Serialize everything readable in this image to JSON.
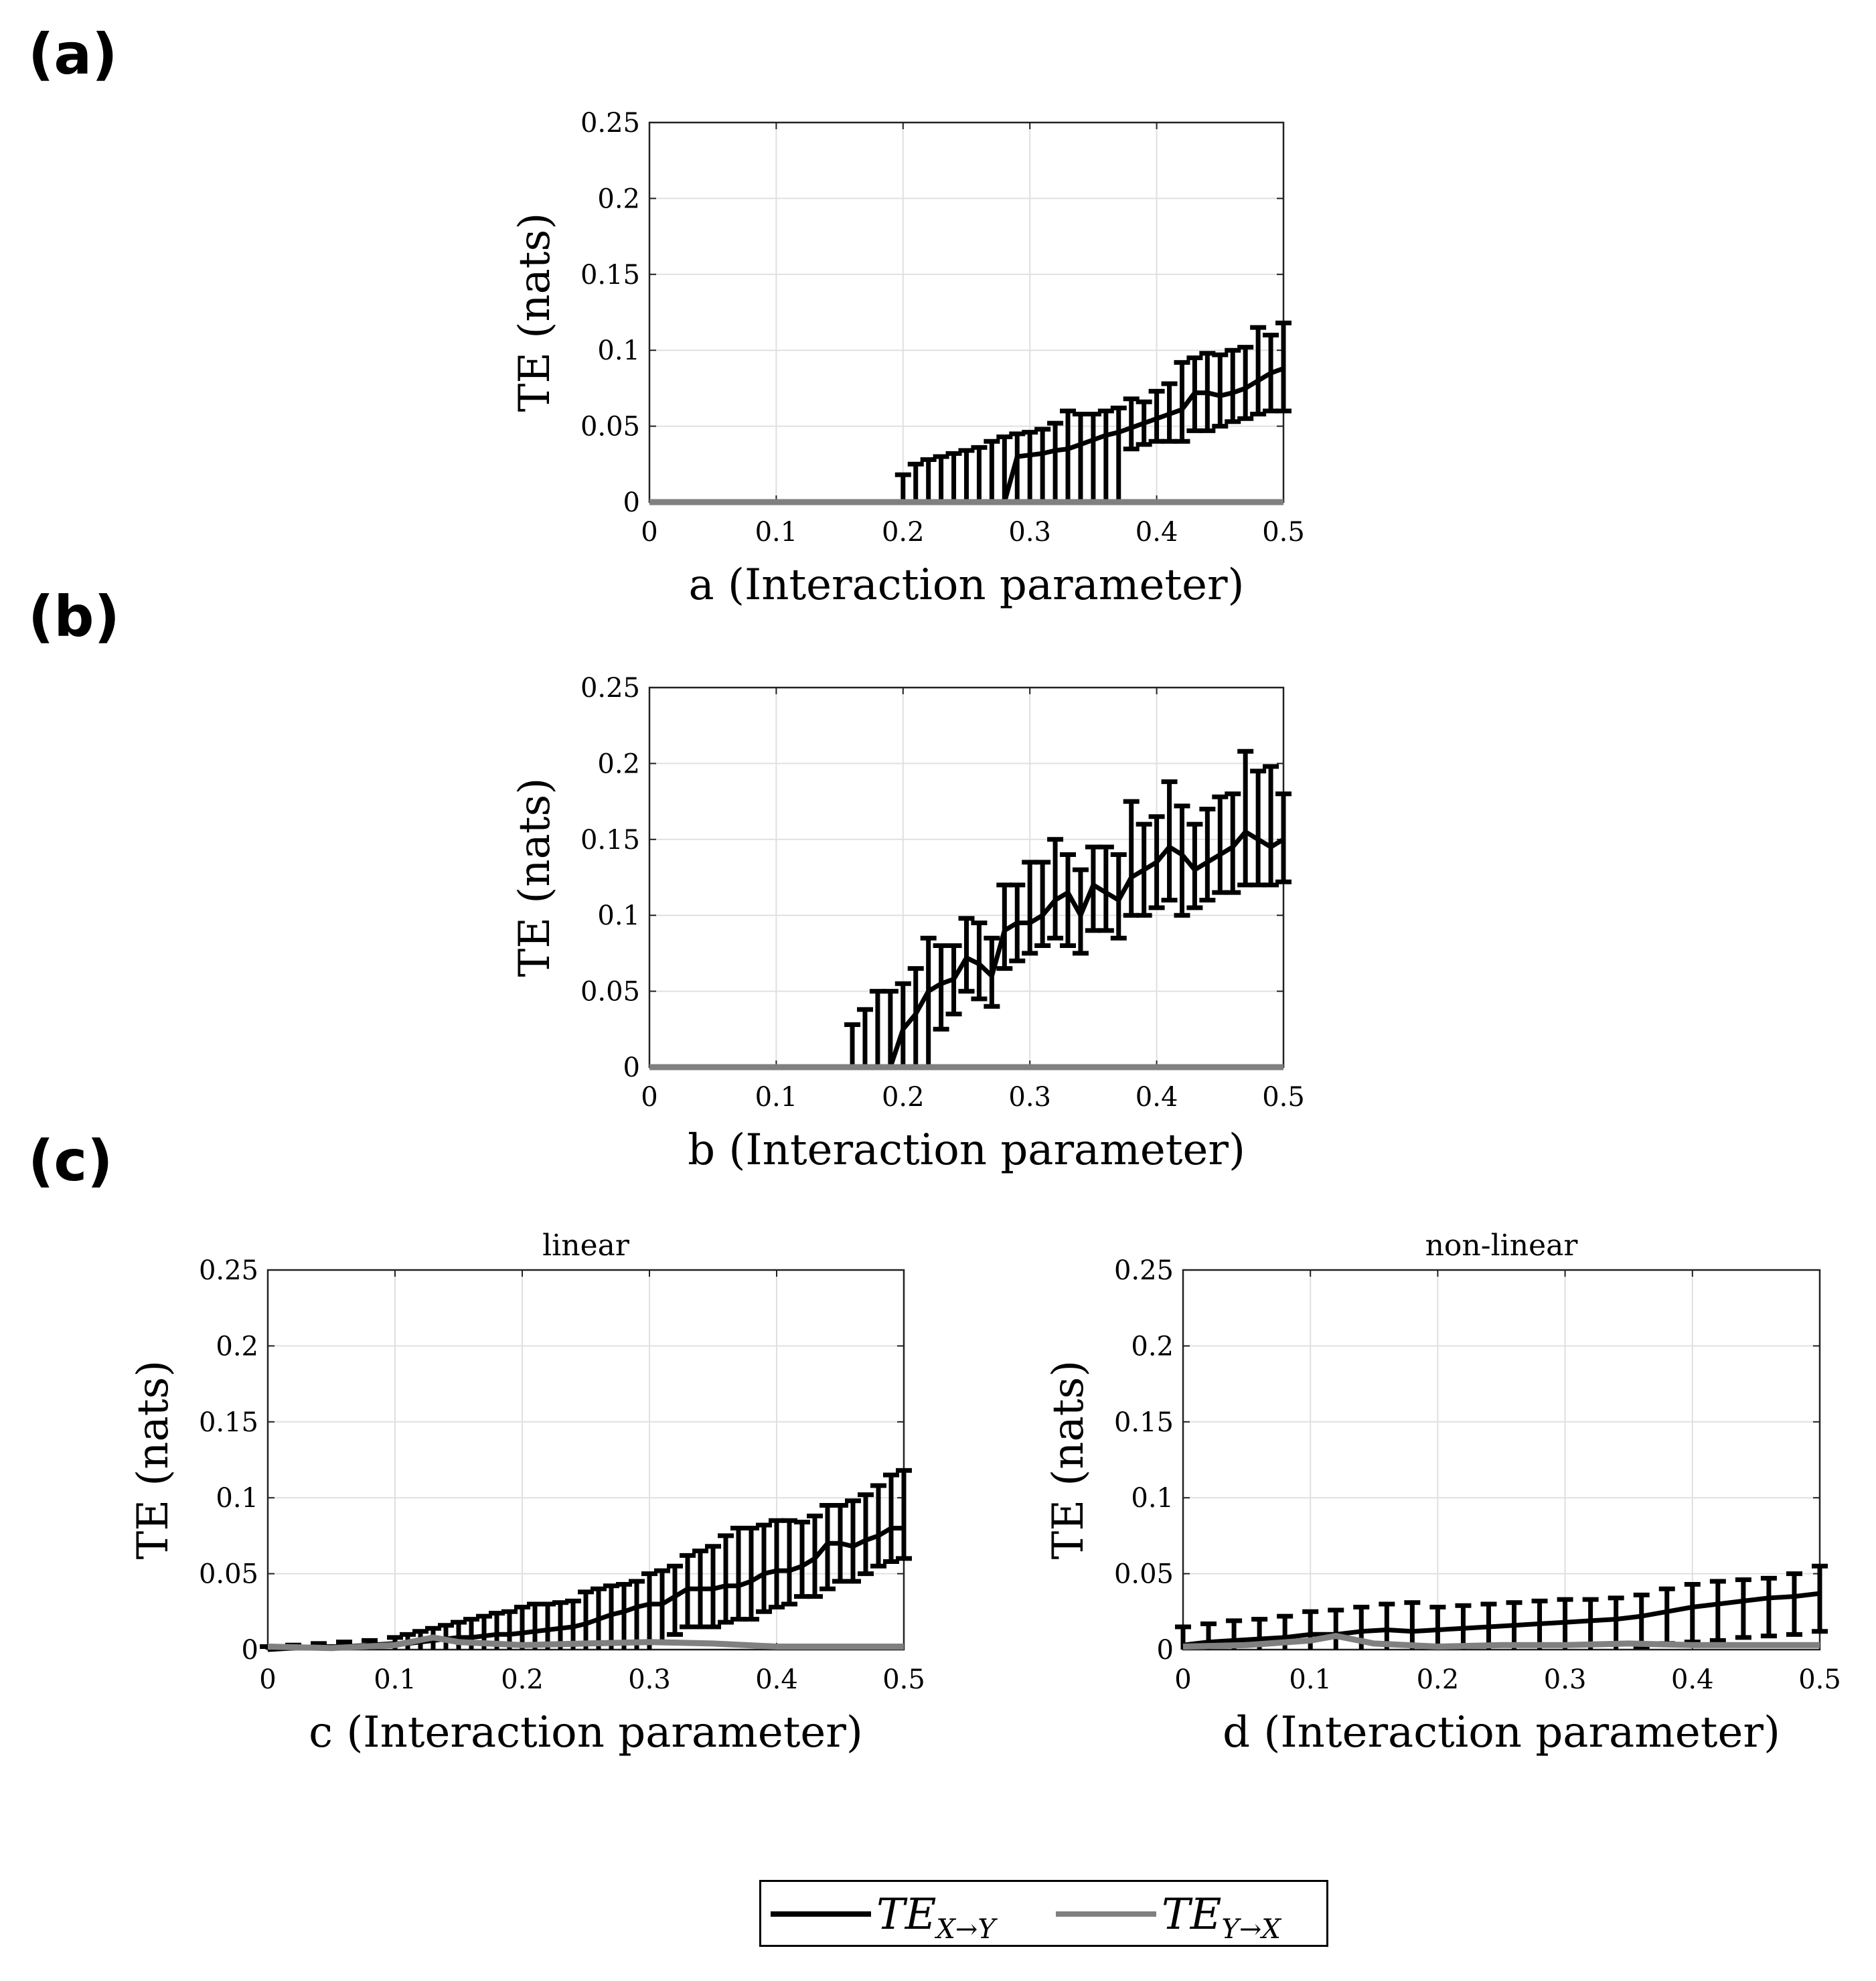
{
  "panel_labels": [
    "(a)",
    "(b)",
    "(c)"
  ],
  "legend": {
    "entries": [
      {
        "main": "TE",
        "sub": "X→Y",
        "color": "#000000"
      },
      {
        "main": "TE",
        "sub": "Y→X",
        "color": "#808080"
      }
    ]
  },
  "chart_data": [
    {
      "type": "line",
      "title": "",
      "xlabel": "a (Interaction parameter)",
      "ylabel": "TE (nats)",
      "xlim": [
        0,
        0.5
      ],
      "ylim": [
        0,
        0.25
      ],
      "xticks": [
        "0",
        "0.1",
        "0.2",
        "0.3",
        "0.4",
        "0.5"
      ],
      "yticks": [
        "0",
        "0.05",
        "0.1",
        "0.15",
        "0.2",
        "0.25"
      ],
      "grid": true,
      "series": [
        {
          "name": "TE X→Y",
          "color": "#000000",
          "x": [
            0.2,
            0.21,
            0.22,
            0.23,
            0.24,
            0.25,
            0.26,
            0.27,
            0.28,
            0.29,
            0.3,
            0.31,
            0.32,
            0.33,
            0.34,
            0.35,
            0.36,
            0.37,
            0.38,
            0.39,
            0.4,
            0.41,
            0.42,
            0.43,
            0.44,
            0.45,
            0.46,
            0.47,
            0.48,
            0.49,
            0.5
          ],
          "y": [
            0,
            0,
            0,
            0,
            0,
            0,
            0,
            0,
            0,
            0.03,
            0.031,
            0.032,
            0.034,
            0.035,
            0.038,
            0.041,
            0.044,
            0.046,
            0.049,
            0.052,
            0.055,
            0.058,
            0.061,
            0.072,
            0.072,
            0.07,
            0.072,
            0.075,
            0.08,
            0.085,
            0.088
          ],
          "err_low": [
            0,
            0,
            0,
            0,
            0,
            0,
            0,
            0,
            0,
            0,
            0,
            0,
            0,
            0,
            0,
            0,
            0,
            0,
            0.035,
            0.038,
            0.04,
            0.04,
            0.04,
            0.047,
            0.047,
            0.05,
            0.053,
            0.055,
            0.058,
            0.06,
            0.06
          ],
          "err_high": [
            0.018,
            0.025,
            0.028,
            0.03,
            0.032,
            0.034,
            0.036,
            0.04,
            0.043,
            0.045,
            0.046,
            0.048,
            0.052,
            0.06,
            0.058,
            0.058,
            0.06,
            0.062,
            0.068,
            0.066,
            0.073,
            0.078,
            0.092,
            0.095,
            0.098,
            0.097,
            0.1,
            0.102,
            0.115,
            0.11,
            0.118
          ]
        },
        {
          "name": "TE Y→X",
          "color": "#808080",
          "x": [
            0,
            0.5
          ],
          "y": [
            0,
            0
          ]
        }
      ]
    },
    {
      "type": "line",
      "title": "",
      "xlabel": "b (Interaction parameter)",
      "ylabel": "TE (nats)",
      "xlim": [
        0,
        0.5
      ],
      "ylim": [
        0,
        0.25
      ],
      "xticks": [
        "0",
        "0.1",
        "0.2",
        "0.3",
        "0.4",
        "0.5"
      ],
      "yticks": [
        "0",
        "0.05",
        "0.1",
        "0.15",
        "0.2",
        "0.25"
      ],
      "grid": true,
      "series": [
        {
          "name": "TE X→Y",
          "color": "#000000",
          "x": [
            0.16,
            0.17,
            0.18,
            0.19,
            0.2,
            0.21,
            0.22,
            0.23,
            0.24,
            0.25,
            0.26,
            0.27,
            0.28,
            0.29,
            0.3,
            0.31,
            0.32,
            0.33,
            0.34,
            0.35,
            0.36,
            0.37,
            0.38,
            0.39,
            0.4,
            0.41,
            0.42,
            0.43,
            0.44,
            0.45,
            0.46,
            0.47,
            0.48,
            0.49,
            0.5
          ],
          "y": [
            0,
            0,
            0,
            0,
            0.025,
            0.035,
            0.05,
            0.055,
            0.058,
            0.072,
            0.068,
            0.06,
            0.09,
            0.095,
            0.095,
            0.1,
            0.11,
            0.115,
            0.1,
            0.12,
            0.115,
            0.11,
            0.125,
            0.13,
            0.135,
            0.145,
            0.14,
            0.13,
            0.135,
            0.14,
            0.145,
            0.155,
            0.15,
            0.145,
            0.15
          ],
          "err_low": [
            0,
            0,
            0,
            0,
            0,
            0,
            0,
            0.025,
            0.035,
            0.05,
            0.045,
            0.04,
            0.065,
            0.07,
            0.075,
            0.08,
            0.085,
            0.08,
            0.075,
            0.09,
            0.09,
            0.085,
            0.1,
            0.1,
            0.105,
            0.11,
            0.1,
            0.105,
            0.11,
            0.115,
            0.115,
            0.12,
            0.12,
            0.12,
            0.122
          ],
          "err_high": [
            0.028,
            0.038,
            0.05,
            0.05,
            0.055,
            0.065,
            0.085,
            0.08,
            0.08,
            0.098,
            0.095,
            0.085,
            0.12,
            0.12,
            0.135,
            0.135,
            0.15,
            0.14,
            0.13,
            0.145,
            0.145,
            0.14,
            0.175,
            0.16,
            0.165,
            0.188,
            0.172,
            0.16,
            0.17,
            0.178,
            0.18,
            0.208,
            0.195,
            0.198,
            0.18
          ]
        },
        {
          "name": "TE Y→X",
          "color": "#808080",
          "x": [
            0,
            0.5
          ],
          "y": [
            0,
            0
          ]
        }
      ]
    },
    {
      "type": "line",
      "title": "linear",
      "xlabel": "c (Interaction parameter)",
      "ylabel": "TE (nats)",
      "xlim": [
        0,
        0.5
      ],
      "ylim": [
        0,
        0.25
      ],
      "xticks": [
        "0",
        "0.1",
        "0.2",
        "0.3",
        "0.4",
        "0.5"
      ],
      "yticks": [
        "0",
        "0.05",
        "0.1",
        "0.15",
        "0.2",
        "0.25"
      ],
      "grid": true,
      "series": [
        {
          "name": "TE X→Y",
          "color": "#000000",
          "x": [
            0.0,
            0.02,
            0.04,
            0.06,
            0.08,
            0.1,
            0.11,
            0.12,
            0.13,
            0.14,
            0.15,
            0.16,
            0.17,
            0.18,
            0.19,
            0.2,
            0.21,
            0.22,
            0.23,
            0.24,
            0.25,
            0.26,
            0.27,
            0.28,
            0.29,
            0.3,
            0.31,
            0.32,
            0.33,
            0.34,
            0.35,
            0.36,
            0.37,
            0.38,
            0.39,
            0.4,
            0.41,
            0.42,
            0.43,
            0.44,
            0.45,
            0.46,
            0.47,
            0.48,
            0.49,
            0.5
          ],
          "y": [
            0,
            0.001,
            0.002,
            0.002,
            0.003,
            0.004,
            0.004,
            0.005,
            0.006,
            0.007,
            0.008,
            0.008,
            0.009,
            0.01,
            0.01,
            0.011,
            0.012,
            0.013,
            0.014,
            0.015,
            0.017,
            0.02,
            0.023,
            0.025,
            0.028,
            0.03,
            0.03,
            0.035,
            0.04,
            0.04,
            0.04,
            0.042,
            0.042,
            0.045,
            0.05,
            0.052,
            0.052,
            0.055,
            0.06,
            0.07,
            0.07,
            0.068,
            0.072,
            0.075,
            0.08,
            0.08
          ],
          "err_low": [
            0,
            0,
            0,
            0,
            0,
            0,
            0,
            0,
            0,
            0,
            0,
            0,
            0,
            0,
            0,
            0,
            0,
            0,
            0,
            0,
            0,
            0,
            0,
            0,
            0,
            0,
            0.005,
            0.01,
            0.015,
            0.015,
            0.015,
            0.018,
            0.02,
            0.02,
            0.025,
            0.028,
            0.03,
            0.035,
            0.035,
            0.04,
            0.045,
            0.045,
            0.05,
            0.055,
            0.058,
            0.06
          ],
          "err_high": [
            0.002,
            0.003,
            0.004,
            0.005,
            0.006,
            0.008,
            0.01,
            0.012,
            0.014,
            0.016,
            0.018,
            0.02,
            0.022,
            0.024,
            0.025,
            0.028,
            0.03,
            0.03,
            0.031,
            0.032,
            0.038,
            0.04,
            0.042,
            0.043,
            0.045,
            0.05,
            0.052,
            0.055,
            0.062,
            0.065,
            0.068,
            0.075,
            0.08,
            0.08,
            0.082,
            0.085,
            0.085,
            0.084,
            0.088,
            0.095,
            0.095,
            0.098,
            0.102,
            0.108,
            0.115,
            0.118
          ]
        },
        {
          "name": "TE Y→X",
          "color": "#808080",
          "x": [
            0,
            0.05,
            0.1,
            0.13,
            0.15,
            0.2,
            0.25,
            0.3,
            0.35,
            0.4,
            0.45,
            0.5
          ],
          "y": [
            0.002,
            0.001,
            0.003,
            0.008,
            0.005,
            0.003,
            0.004,
            0.005,
            0.004,
            0.002,
            0.002,
            0.002
          ]
        }
      ]
    },
    {
      "type": "line",
      "title": "non-linear",
      "xlabel": "d (Interaction parameter)",
      "ylabel": "TE (nats)",
      "xlim": [
        0,
        0.5
      ],
      "ylim": [
        0,
        0.25
      ],
      "xticks": [
        "0",
        "0.1",
        "0.2",
        "0.3",
        "0.4",
        "0.5"
      ],
      "yticks": [
        "0",
        "0.05",
        "0.1",
        "0.15",
        "0.2",
        "0.25"
      ],
      "grid": true,
      "series": [
        {
          "name": "TE X→Y",
          "color": "#000000",
          "x": [
            0.0,
            0.02,
            0.04,
            0.06,
            0.08,
            0.1,
            0.12,
            0.14,
            0.16,
            0.18,
            0.2,
            0.22,
            0.24,
            0.26,
            0.28,
            0.3,
            0.32,
            0.34,
            0.36,
            0.38,
            0.4,
            0.42,
            0.44,
            0.46,
            0.48,
            0.5
          ],
          "y": [
            0.003,
            0.005,
            0.006,
            0.007,
            0.008,
            0.01,
            0.01,
            0.012,
            0.013,
            0.012,
            0.013,
            0.014,
            0.015,
            0.016,
            0.017,
            0.018,
            0.019,
            0.02,
            0.022,
            0.025,
            0.028,
            0.03,
            0.032,
            0.034,
            0.035,
            0.037
          ],
          "err_low": [
            0,
            0,
            0,
            0,
            0,
            0,
            0,
            0,
            0,
            0,
            0,
            0,
            0,
            0,
            0,
            0,
            0,
            0,
            0.002,
            0.004,
            0.005,
            0.006,
            0.008,
            0.009,
            0.01,
            0.012
          ],
          "err_high": [
            0.015,
            0.017,
            0.019,
            0.02,
            0.022,
            0.025,
            0.026,
            0.028,
            0.03,
            0.031,
            0.028,
            0.029,
            0.03,
            0.031,
            0.032,
            0.033,
            0.033,
            0.034,
            0.036,
            0.04,
            0.043,
            0.045,
            0.046,
            0.047,
            0.05,
            0.055
          ]
        },
        {
          "name": "TE Y→X",
          "color": "#808080",
          "x": [
            0,
            0.05,
            0.1,
            0.12,
            0.15,
            0.2,
            0.25,
            0.3,
            0.35,
            0.4,
            0.45,
            0.5
          ],
          "y": [
            0.002,
            0.003,
            0.006,
            0.009,
            0.004,
            0.002,
            0.003,
            0.003,
            0.004,
            0.003,
            0.003,
            0.003
          ]
        }
      ]
    }
  ]
}
